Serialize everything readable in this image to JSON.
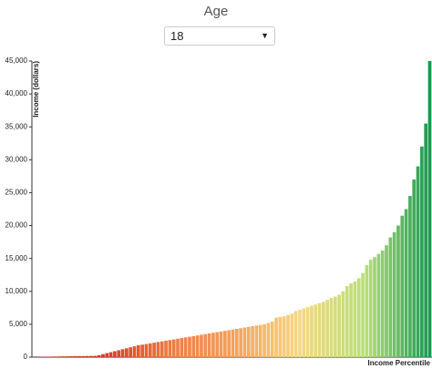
{
  "control": {
    "label": "Age",
    "selected": "18"
  },
  "chart_data": {
    "type": "bar",
    "y_label": "Income (dollars)",
    "x_label": "Income Percentile",
    "values": [
      50,
      60,
      70,
      80,
      90,
      100,
      110,
      120,
      130,
      140,
      150,
      160,
      170,
      180,
      200,
      300,
      450,
      600,
      750,
      900,
      1050,
      1200,
      1350,
      1500,
      1650,
      1800,
      1900,
      2000,
      2100,
      2200,
      2300,
      2400,
      2500,
      2600,
      2700,
      2800,
      2900,
      3000,
      3100,
      3200,
      3300,
      3400,
      3500,
      3600,
      3700,
      3800,
      3900,
      4000,
      4100,
      4200,
      4300,
      4400,
      4500,
      4600,
      4700,
      4800,
      4900,
      5000,
      5200,
      5400,
      6000,
      6100,
      6200,
      6400,
      6600,
      7000,
      7200,
      7400,
      7600,
      7800,
      8000,
      8200,
      8400,
      8700,
      9000,
      9200,
      9500,
      10000,
      10800,
      11200,
      11500,
      12000,
      12800,
      14000,
      14800,
      15200,
      15700,
      16200,
      17000,
      18200,
      19000,
      20000,
      21500,
      22500,
      24500,
      27000,
      29000,
      32000,
      35500,
      45000
    ],
    "color_scale": [
      "#c0281f",
      "#d63a26",
      "#ee7a45",
      "#f4a25c",
      "#f6d784",
      "#b9df7a",
      "#1a9850"
    ],
    "ylim": [
      0,
      45000
    ],
    "yticks": [
      0,
      {
        "value": 5000,
        "label": "5,000"
      },
      {
        "value": 10000,
        "label": "10,000"
      },
      {
        "value": 15000,
        "label": "15,000"
      },
      {
        "value": 20000,
        "label": "20,000"
      },
      {
        "value": 25000,
        "label": "25,000"
      },
      {
        "value": 30000,
        "label": "30,000"
      },
      {
        "value": 35000,
        "label": "35,000"
      },
      {
        "value": 40000,
        "label": "40,000"
      },
      {
        "value": 45000,
        "label": "45,000"
      }
    ],
    "grid": false
  }
}
